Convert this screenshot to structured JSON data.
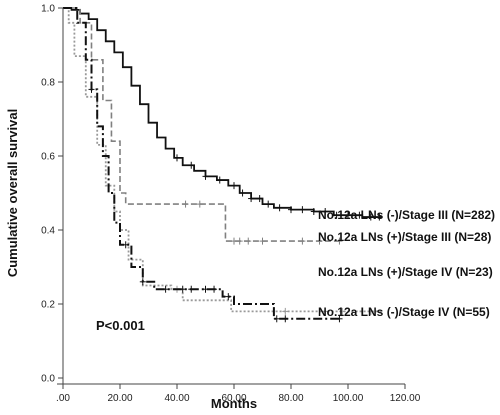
{
  "chart_data": {
    "type": "line",
    "step": true,
    "xlabel": "Months",
    "ylabel": "Cumulative overall survival",
    "xlim": [
      0,
      120
    ],
    "ylim": [
      0,
      1.0
    ],
    "x_ticks": [
      0,
      20,
      40,
      60,
      80,
      100,
      120
    ],
    "x_tick_labels": [
      ".00",
      "20.00",
      "40.00",
      "60.00",
      "80.00",
      "100.00",
      "120.00"
    ],
    "y_ticks": [
      0,
      0.2,
      0.4,
      0.6,
      0.8,
      1.0
    ],
    "y_tick_labels": [
      "0.0",
      "0.2",
      "0.4",
      "0.6",
      "0.8",
      "1.0"
    ],
    "grid": false,
    "annotation": "P<0.001",
    "series": [
      {
        "label": "No.12a LNs (-)/Stage III (N=282)",
        "line_style": "solid",
        "color": "#111111",
        "points": [
          [
            0,
            1.0
          ],
          [
            3,
            0.995
          ],
          [
            6,
            0.985
          ],
          [
            9,
            0.97
          ],
          [
            12,
            0.94
          ],
          [
            15,
            0.91
          ],
          [
            18,
            0.88
          ],
          [
            21,
            0.84
          ],
          [
            24,
            0.79
          ],
          [
            27,
            0.74
          ],
          [
            30,
            0.69
          ],
          [
            33,
            0.65
          ],
          [
            36,
            0.62
          ],
          [
            39,
            0.595
          ],
          [
            42,
            0.575
          ],
          [
            46,
            0.56
          ],
          [
            50,
            0.545
          ],
          [
            54,
            0.535
          ],
          [
            58,
            0.52
          ],
          [
            62,
            0.5
          ],
          [
            66,
            0.485
          ],
          [
            70,
            0.47
          ],
          [
            74,
            0.46
          ],
          [
            80,
            0.455
          ],
          [
            88,
            0.45
          ],
          [
            95,
            0.44
          ],
          [
            105,
            0.435
          ],
          [
            112,
            0.435
          ]
        ],
        "censor_x": [
          40,
          45,
          50,
          55,
          60,
          63,
          66,
          69,
          72,
          76,
          80,
          84,
          88,
          92,
          96,
          100,
          104,
          108,
          111
        ]
      },
      {
        "label": "No.12a LNs (+)/Stage III (N=28)",
        "line_style": "dashed",
        "color": "#808080",
        "points": [
          [
            0,
            1.0
          ],
          [
            6,
            0.96
          ],
          [
            10,
            0.86
          ],
          [
            14,
            0.75
          ],
          [
            17,
            0.64
          ],
          [
            20,
            0.5
          ],
          [
            22,
            0.47
          ],
          [
            35,
            0.47
          ],
          [
            45,
            0.47
          ],
          [
            57,
            0.37
          ],
          [
            97,
            0.37
          ]
        ],
        "censor_x": [
          43,
          48,
          60,
          62,
          65,
          70,
          84,
          90,
          97
        ]
      },
      {
        "label": "No.12a LNs (+)/Stage IV (N=23)",
        "line_style": "dotted",
        "color": "#999999",
        "points": [
          [
            0,
            1.0
          ],
          [
            2,
            0.96
          ],
          [
            4,
            0.87
          ],
          [
            8,
            0.76
          ],
          [
            12,
            0.63
          ],
          [
            15,
            0.52
          ],
          [
            18,
            0.45
          ],
          [
            20,
            0.4
          ],
          [
            23,
            0.32
          ],
          [
            28,
            0.25
          ],
          [
            38,
            0.24
          ],
          [
            42,
            0.21
          ],
          [
            55,
            0.21
          ],
          [
            59,
            0.18
          ],
          [
            112,
            0.18
          ]
        ],
        "censor_x": [
          40,
          78,
          92,
          98,
          108
        ]
      },
      {
        "label": "No.12a LNs (-)/Stage IV (N=55)",
        "line_style": "dashdot",
        "color": "#111111",
        "points": [
          [
            0,
            1.0
          ],
          [
            5,
            0.96
          ],
          [
            8,
            0.86
          ],
          [
            10,
            0.78
          ],
          [
            12,
            0.68
          ],
          [
            14,
            0.6
          ],
          [
            16,
            0.5
          ],
          [
            18,
            0.42
          ],
          [
            20,
            0.36
          ],
          [
            24,
            0.3
          ],
          [
            28,
            0.26
          ],
          [
            32,
            0.24
          ],
          [
            50,
            0.24
          ],
          [
            56,
            0.22
          ],
          [
            60,
            0.2
          ],
          [
            74,
            0.16
          ],
          [
            98,
            0.16
          ]
        ],
        "censor_x": [
          10,
          22,
          28,
          36,
          42,
          45,
          50,
          53,
          58,
          75,
          78,
          97
        ]
      }
    ]
  }
}
